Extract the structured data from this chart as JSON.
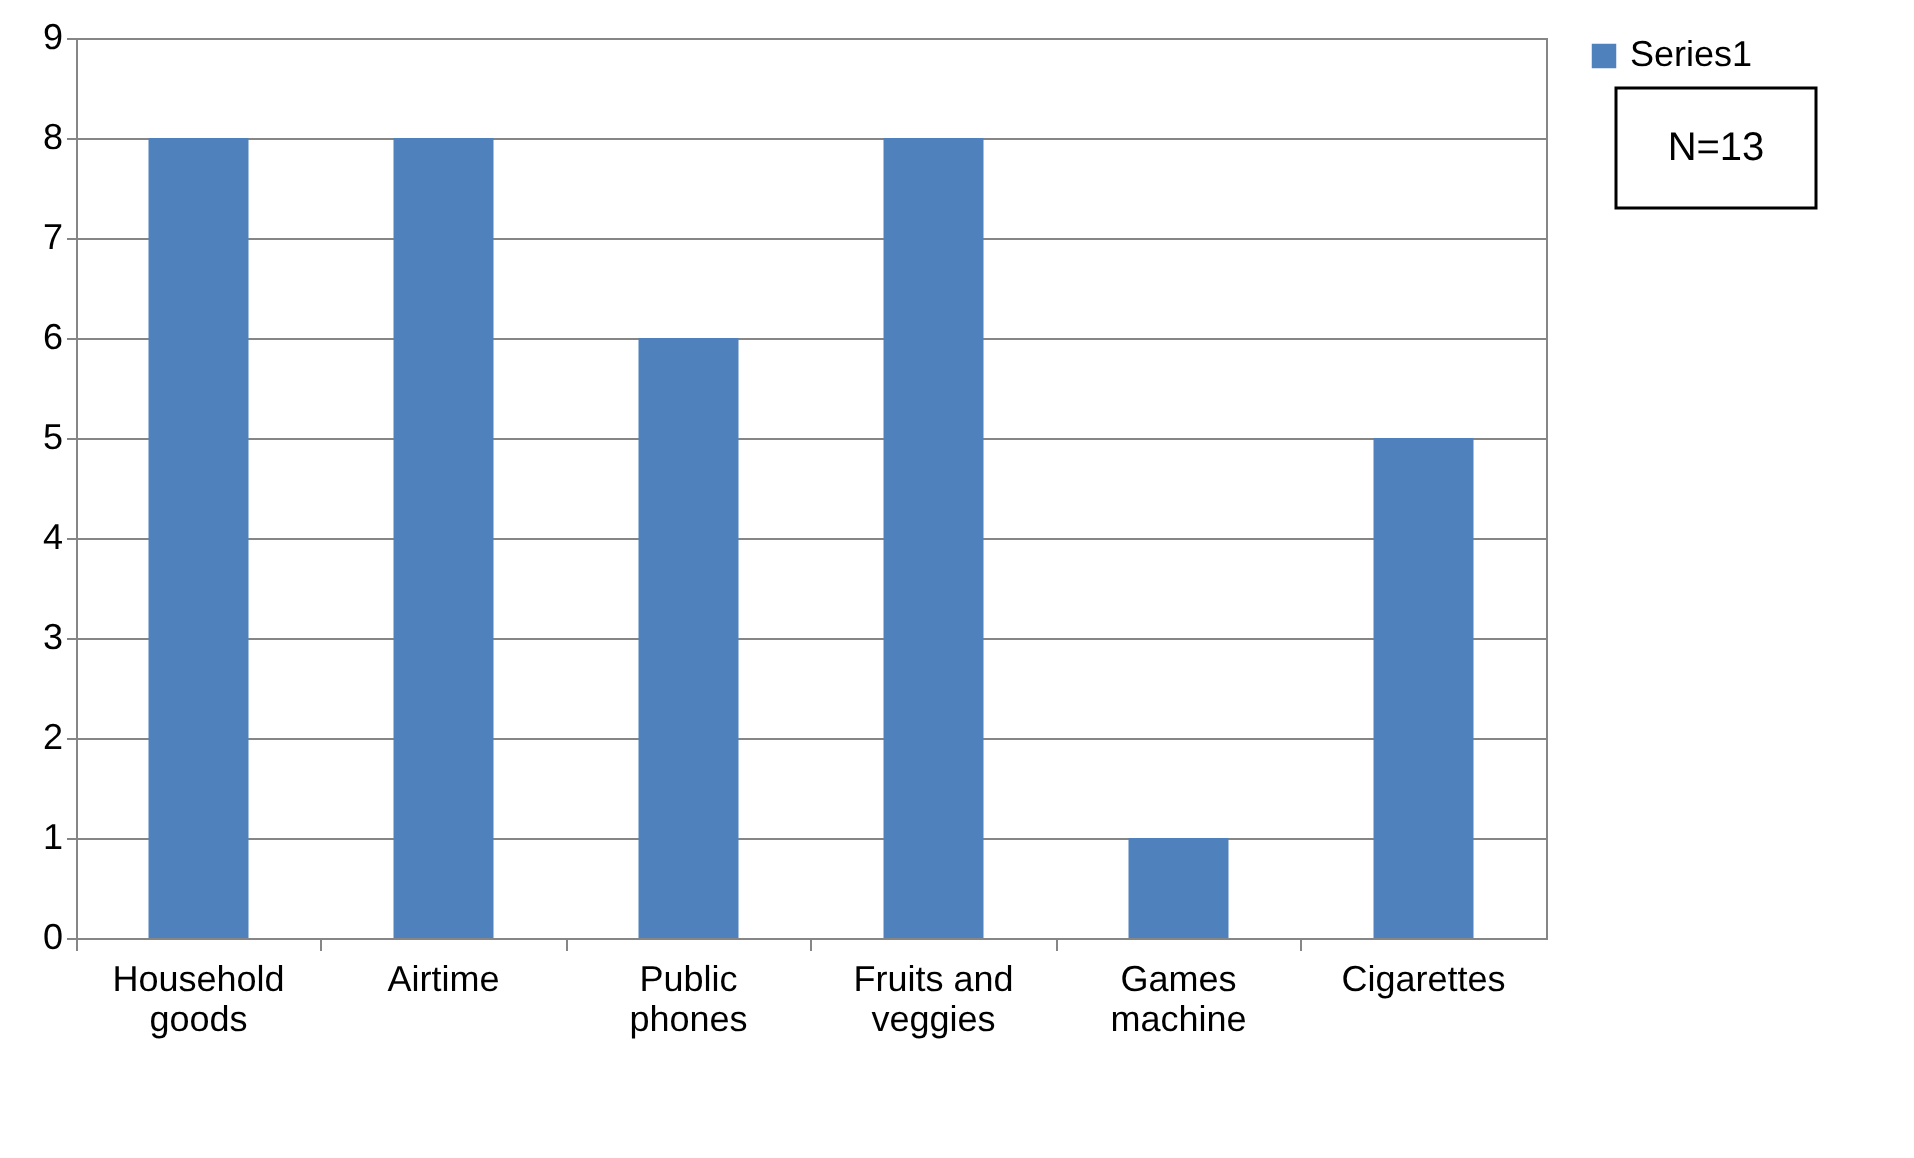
{
  "chart_data": {
    "type": "bar",
    "categories": [
      "Household goods",
      "Airtime",
      "Public phones",
      "Fruits and veggies",
      "Games machine",
      "Cigarettes"
    ],
    "series": [
      {
        "name": "Series1",
        "color": "#4f81bd",
        "values": [
          8,
          8,
          6,
          8,
          1,
          5
        ]
      }
    ],
    "ylim": [
      0,
      9
    ],
    "yticks": [
      0,
      1,
      2,
      3,
      4,
      5,
      6,
      7,
      8,
      9
    ],
    "grid": "y",
    "legend": "right",
    "annotations": [
      "N=13"
    ]
  }
}
